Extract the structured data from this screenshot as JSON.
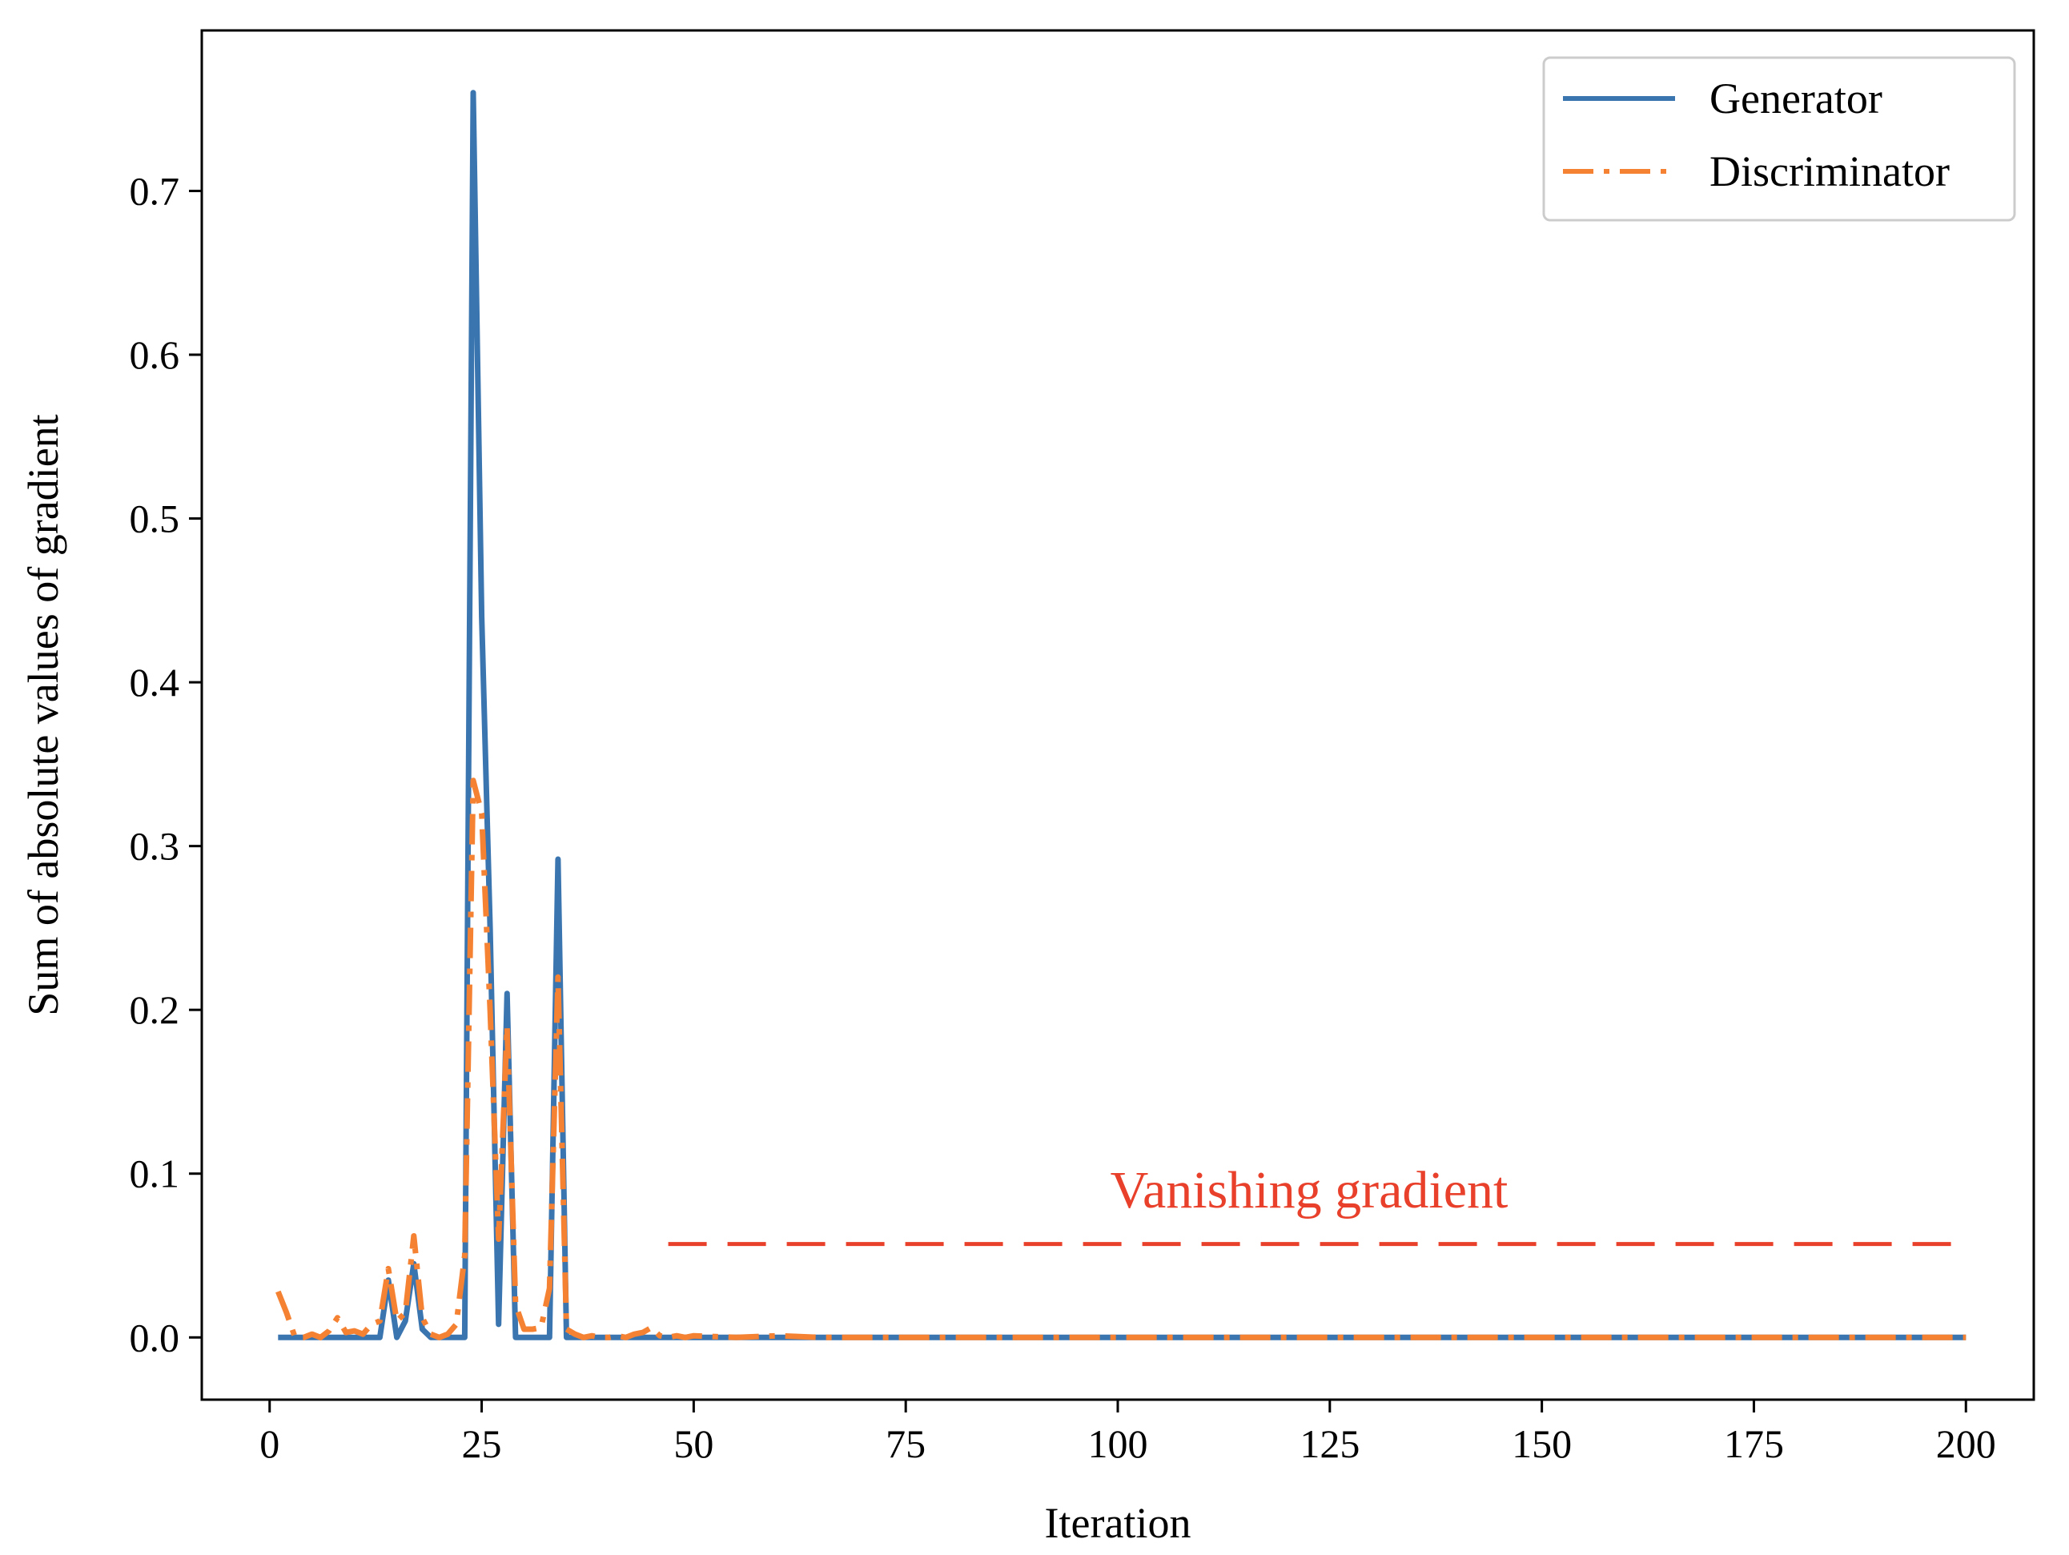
{
  "chart_data": {
    "type": "line",
    "title": "",
    "xlabel": "Iteration",
    "ylabel": "Sum of absolute values of gradient",
    "xlim": [
      -8,
      208
    ],
    "ylim": [
      -0.038,
      0.798
    ],
    "xticks": [
      0,
      25,
      50,
      75,
      100,
      125,
      150,
      175,
      200
    ],
    "xtick_labels": [
      "0",
      "25",
      "50",
      "75",
      "100",
      "125",
      "150",
      "175",
      "200"
    ],
    "yticks": [
      0.0,
      0.1,
      0.2,
      0.3,
      0.4,
      0.5,
      0.6,
      0.7
    ],
    "ytick_labels": [
      "0.0",
      "0.1",
      "0.2",
      "0.3",
      "0.4",
      "0.5",
      "0.6",
      "0.7"
    ],
    "grid": false,
    "legend_position": "top-right",
    "series": [
      {
        "name": "Generator",
        "color": "#3a75b0",
        "style": "solid",
        "points": [
          [
            1,
            0
          ],
          [
            2,
            0
          ],
          [
            3,
            0
          ],
          [
            4,
            0
          ],
          [
            5,
            0
          ],
          [
            6,
            0
          ],
          [
            7,
            0
          ],
          [
            8,
            0
          ],
          [
            9,
            0
          ],
          [
            10,
            0
          ],
          [
            11,
            0
          ],
          [
            12,
            0
          ],
          [
            13,
            0
          ],
          [
            14,
            0.035
          ],
          [
            15,
            0
          ],
          [
            16,
            0.01
          ],
          [
            17,
            0.045
          ],
          [
            18,
            0.005
          ],
          [
            19,
            0
          ],
          [
            20,
            0
          ],
          [
            21,
            0
          ],
          [
            22,
            0
          ],
          [
            23,
            0
          ],
          [
            24,
            0.76
          ],
          [
            25,
            0.44
          ],
          [
            26,
            0.25
          ],
          [
            27,
            0.008
          ],
          [
            28,
            0.21
          ],
          [
            29,
            0
          ],
          [
            30,
            0
          ],
          [
            31,
            0
          ],
          [
            32,
            0
          ],
          [
            33,
            0
          ],
          [
            34,
            0.292
          ],
          [
            35,
            0
          ],
          [
            36,
            0
          ],
          [
            40,
            0
          ],
          [
            50,
            0
          ],
          [
            100,
            0
          ],
          [
            150,
            0
          ],
          [
            200,
            0
          ]
        ]
      },
      {
        "name": "Discriminator",
        "color": "#f58233",
        "style": "dashdot",
        "points": [
          [
            1,
            0.028
          ],
          [
            2,
            0.015
          ],
          [
            3,
            0
          ],
          [
            4,
            0
          ],
          [
            5,
            0.002
          ],
          [
            6,
            0
          ],
          [
            7,
            0.004
          ],
          [
            8,
            0.012
          ],
          [
            9,
            0.003
          ],
          [
            10,
            0.004
          ],
          [
            11,
            0.002
          ],
          [
            12,
            0.008
          ],
          [
            13,
            0.01
          ],
          [
            14,
            0.042
          ],
          [
            15,
            0.01
          ],
          [
            16,
            0.015
          ],
          [
            17,
            0.062
          ],
          [
            18,
            0.012
          ],
          [
            19,
            0.002
          ],
          [
            20,
            0
          ],
          [
            21,
            0.002
          ],
          [
            22,
            0.008
          ],
          [
            23,
            0.05
          ],
          [
            24,
            0.34
          ],
          [
            25,
            0.32
          ],
          [
            26,
            0.2
          ],
          [
            27,
            0.06
          ],
          [
            28,
            0.19
          ],
          [
            29,
            0.02
          ],
          [
            30,
            0.005
          ],
          [
            31,
            0.005
          ],
          [
            32,
            0.006
          ],
          [
            33,
            0.03
          ],
          [
            34,
            0.22
          ],
          [
            35,
            0.005
          ],
          [
            36,
            0.002
          ],
          [
            37,
            0
          ],
          [
            38,
            0.001
          ],
          [
            39,
            0
          ],
          [
            40,
            0
          ],
          [
            41,
            0.001
          ],
          [
            42,
            0
          ],
          [
            43,
            0.002
          ],
          [
            44,
            0.003
          ],
          [
            45,
            0.006
          ],
          [
            46,
            0.001
          ],
          [
            47,
            0
          ],
          [
            48,
            0.001
          ],
          [
            49,
            0
          ],
          [
            50,
            0.001
          ],
          [
            55,
            0
          ],
          [
            60,
            0.001
          ],
          [
            65,
            0
          ],
          [
            200,
            0
          ]
        ]
      }
    ],
    "annotations": [
      {
        "text": "Vanishing gradient",
        "color": "#e8402a"
      }
    ],
    "reference_line": {
      "x_start": 47,
      "x_end": 199,
      "y": 0.057,
      "color": "#e8402a",
      "style": "dashed"
    }
  }
}
